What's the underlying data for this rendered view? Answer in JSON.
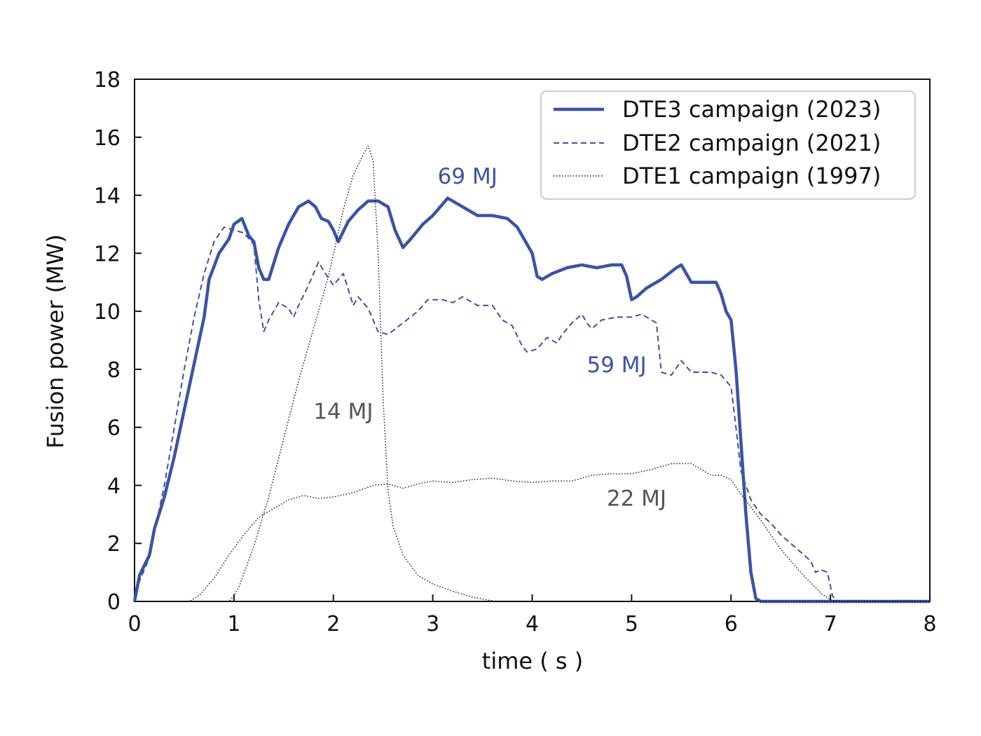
{
  "chart_data": {
    "type": "line",
    "xlabel": "time  ( s )",
    "ylabel": "Fusion power (MW)",
    "xlim": [
      0,
      8
    ],
    "ylim": [
      0,
      18
    ],
    "xticks": [
      0,
      1,
      2,
      3,
      4,
      5,
      6,
      7,
      8
    ],
    "yticks": [
      0,
      2,
      4,
      6,
      8,
      10,
      12,
      14,
      16,
      18
    ],
    "grid": false,
    "legend_position": "top-right",
    "colors": {
      "blue": "#3c53a4",
      "black": "#111111",
      "annotation_gray": "#555555"
    },
    "series": [
      {
        "name": "DTE3 campaign (2023)",
        "style": "solid",
        "color": "#3c53a4",
        "points": [
          [
            0,
            0
          ],
          [
            0.05,
            0.9
          ],
          [
            0.15,
            1.6
          ],
          [
            0.2,
            2.5
          ],
          [
            0.3,
            3.6
          ],
          [
            0.4,
            5
          ],
          [
            0.5,
            6.6
          ],
          [
            0.6,
            8.2
          ],
          [
            0.7,
            9.8
          ],
          [
            0.75,
            11.1
          ],
          [
            0.85,
            12
          ],
          [
            0.95,
            12.5
          ],
          [
            1.0,
            13
          ],
          [
            1.08,
            13.2
          ],
          [
            1.15,
            12.6
          ],
          [
            1.2,
            12.4
          ],
          [
            1.25,
            11.5
          ],
          [
            1.3,
            11.1
          ],
          [
            1.35,
            11.1
          ],
          [
            1.45,
            12.2
          ],
          [
            1.55,
            13.0
          ],
          [
            1.65,
            13.6
          ],
          [
            1.75,
            13.8
          ],
          [
            1.82,
            13.6
          ],
          [
            1.88,
            13.2
          ],
          [
            1.95,
            13.1
          ],
          [
            2.0,
            12.8
          ],
          [
            2.05,
            12.4
          ],
          [
            2.15,
            13.1
          ],
          [
            2.25,
            13.5
          ],
          [
            2.35,
            13.8
          ],
          [
            2.45,
            13.8
          ],
          [
            2.55,
            13.6
          ],
          [
            2.62,
            12.8
          ],
          [
            2.7,
            12.2
          ],
          [
            2.78,
            12.5
          ],
          [
            2.9,
            13.0
          ],
          [
            3.0,
            13.3
          ],
          [
            3.1,
            13.7
          ],
          [
            3.15,
            13.9
          ],
          [
            3.3,
            13.6
          ],
          [
            3.45,
            13.3
          ],
          [
            3.6,
            13.3
          ],
          [
            3.75,
            13.2
          ],
          [
            3.85,
            12.9
          ],
          [
            3.95,
            12.3
          ],
          [
            4.0,
            12.0
          ],
          [
            4.05,
            11.2
          ],
          [
            4.1,
            11.1
          ],
          [
            4.2,
            11.3
          ],
          [
            4.35,
            11.5
          ],
          [
            4.5,
            11.6
          ],
          [
            4.65,
            11.5
          ],
          [
            4.8,
            11.6
          ],
          [
            4.9,
            11.6
          ],
          [
            4.95,
            11.2
          ],
          [
            5.0,
            10.4
          ],
          [
            5.05,
            10.5
          ],
          [
            5.15,
            10.8
          ],
          [
            5.3,
            11.1
          ],
          [
            5.45,
            11.5
          ],
          [
            5.5,
            11.6
          ],
          [
            5.55,
            11.3
          ],
          [
            5.6,
            11.0
          ],
          [
            5.7,
            11.0
          ],
          [
            5.85,
            11.0
          ],
          [
            5.9,
            10.6
          ],
          [
            5.95,
            10.0
          ],
          [
            6.0,
            9.7
          ],
          [
            6.05,
            8.0
          ],
          [
            6.1,
            5.5
          ],
          [
            6.15,
            3.0
          ],
          [
            6.2,
            1.0
          ],
          [
            6.25,
            0.1
          ],
          [
            6.3,
            0
          ],
          [
            8.0,
            0
          ]
        ]
      },
      {
        "name": "DTE2 campaign (2021)",
        "style": "dashed",
        "color": "#3c53a4",
        "points": [
          [
            0,
            0
          ],
          [
            0.05,
            0.7
          ],
          [
            0.15,
            1.5
          ],
          [
            0.2,
            2.4
          ],
          [
            0.3,
            4.0
          ],
          [
            0.4,
            6.0
          ],
          [
            0.5,
            8.0
          ],
          [
            0.6,
            9.8
          ],
          [
            0.7,
            11.3
          ],
          [
            0.8,
            12.4
          ],
          [
            0.9,
            12.9
          ],
          [
            1.0,
            12.8
          ],
          [
            1.1,
            12.7
          ],
          [
            1.2,
            12.3
          ],
          [
            1.25,
            10.4
          ],
          [
            1.3,
            9.3
          ],
          [
            1.35,
            9.7
          ],
          [
            1.45,
            10.3
          ],
          [
            1.55,
            10.1
          ],
          [
            1.6,
            9.8
          ],
          [
            1.65,
            10.2
          ],
          [
            1.75,
            10.9
          ],
          [
            1.85,
            11.7
          ],
          [
            1.92,
            11.3
          ],
          [
            2.0,
            10.9
          ],
          [
            2.1,
            11.3
          ],
          [
            2.2,
            10.2
          ],
          [
            2.25,
            10.5
          ],
          [
            2.35,
            10.1
          ],
          [
            2.45,
            9.3
          ],
          [
            2.55,
            9.2
          ],
          [
            2.7,
            9.6
          ],
          [
            2.85,
            10.0
          ],
          [
            2.95,
            10.4
          ],
          [
            3.1,
            10.4
          ],
          [
            3.2,
            10.3
          ],
          [
            3.3,
            10.5
          ],
          [
            3.45,
            10.2
          ],
          [
            3.6,
            10.2
          ],
          [
            3.7,
            9.7
          ],
          [
            3.8,
            9.5
          ],
          [
            3.9,
            8.8
          ],
          [
            3.95,
            8.6
          ],
          [
            4.05,
            8.7
          ],
          [
            4.15,
            9.1
          ],
          [
            4.25,
            8.9
          ],
          [
            4.3,
            9.2
          ],
          [
            4.4,
            9.6
          ],
          [
            4.5,
            9.9
          ],
          [
            4.55,
            9.6
          ],
          [
            4.6,
            9.4
          ],
          [
            4.7,
            9.7
          ],
          [
            4.85,
            9.8
          ],
          [
            5.0,
            9.8
          ],
          [
            5.1,
            9.9
          ],
          [
            5.2,
            9.7
          ],
          [
            5.25,
            9.6
          ],
          [
            5.3,
            7.9
          ],
          [
            5.4,
            7.8
          ],
          [
            5.5,
            8.3
          ],
          [
            5.6,
            7.9
          ],
          [
            5.7,
            7.9
          ],
          [
            5.8,
            7.9
          ],
          [
            5.9,
            7.8
          ],
          [
            6.0,
            7.4
          ],
          [
            6.05,
            6.0
          ],
          [
            6.1,
            4.5
          ],
          [
            6.2,
            3.5
          ],
          [
            6.3,
            3.0
          ],
          [
            6.4,
            2.7
          ],
          [
            6.5,
            2.3
          ],
          [
            6.6,
            2.0
          ],
          [
            6.7,
            1.7
          ],
          [
            6.8,
            1.4
          ],
          [
            6.85,
            1.0
          ],
          [
            6.9,
            1.1
          ],
          [
            6.97,
            1.0
          ],
          [
            7.02,
            0.2
          ],
          [
            7.05,
            0.05
          ],
          [
            7.1,
            0
          ],
          [
            8.0,
            0
          ]
        ]
      },
      {
        "name": "DTE1 campaign (1997)",
        "style": "dotted",
        "color": "#111111",
        "points": [
          [
            0,
            0
          ],
          [
            0.95,
            0
          ],
          [
            1.0,
            0.2
          ],
          [
            1.05,
            0.5
          ],
          [
            1.2,
            1.9
          ],
          [
            1.35,
            3.6
          ],
          [
            1.5,
            5.6
          ],
          [
            1.65,
            7.6
          ],
          [
            1.8,
            9.4
          ],
          [
            1.95,
            11.2
          ],
          [
            2.1,
            13.5
          ],
          [
            2.2,
            14.7
          ],
          [
            2.3,
            15.4
          ],
          [
            2.35,
            15.7
          ],
          [
            2.4,
            15.2
          ],
          [
            2.45,
            12.0
          ],
          [
            2.5,
            7.0
          ],
          [
            2.55,
            3.8
          ],
          [
            2.6,
            2.6
          ],
          [
            2.7,
            1.6
          ],
          [
            2.85,
            0.9
          ],
          [
            3.0,
            0.6
          ],
          [
            3.2,
            0.35
          ],
          [
            3.4,
            0.15
          ],
          [
            3.6,
            0.02
          ],
          [
            3.65,
            0
          ],
          [
            8.0,
            0
          ]
        ]
      },
      {
        "name": "",
        "style": "dotted",
        "color": "#111111",
        "points": [
          [
            0,
            0
          ],
          [
            0.55,
            0
          ],
          [
            0.65,
            0.2
          ],
          [
            0.8,
            0.8
          ],
          [
            0.95,
            1.6
          ],
          [
            1.1,
            2.3
          ],
          [
            1.25,
            2.9
          ],
          [
            1.4,
            3.2
          ],
          [
            1.55,
            3.5
          ],
          [
            1.7,
            3.65
          ],
          [
            1.85,
            3.55
          ],
          [
            2.0,
            3.6
          ],
          [
            2.2,
            3.75
          ],
          [
            2.4,
            4.0
          ],
          [
            2.55,
            4.05
          ],
          [
            2.7,
            3.9
          ],
          [
            2.85,
            4.05
          ],
          [
            3.0,
            4.15
          ],
          [
            3.2,
            4.1
          ],
          [
            3.4,
            4.2
          ],
          [
            3.6,
            4.25
          ],
          [
            3.8,
            4.15
          ],
          [
            4.0,
            4.1
          ],
          [
            4.2,
            4.15
          ],
          [
            4.4,
            4.15
          ],
          [
            4.6,
            4.35
          ],
          [
            4.8,
            4.4
          ],
          [
            5.0,
            4.4
          ],
          [
            5.2,
            4.55
          ],
          [
            5.4,
            4.75
          ],
          [
            5.6,
            4.75
          ],
          [
            5.7,
            4.55
          ],
          [
            5.8,
            4.35
          ],
          [
            5.9,
            4.35
          ],
          [
            6.0,
            4.2
          ],
          [
            6.1,
            3.7
          ],
          [
            6.3,
            2.8
          ],
          [
            6.5,
            1.8
          ],
          [
            6.7,
            1.0
          ],
          [
            6.9,
            0.3
          ],
          [
            7.0,
            0.05
          ],
          [
            7.1,
            0
          ],
          [
            8.0,
            0
          ]
        ]
      }
    ],
    "annotations": [
      {
        "text": "69 MJ",
        "x": 3.35,
        "y": 14.4,
        "color": "#3c53a4"
      },
      {
        "text": "59 MJ",
        "x": 4.85,
        "y": 7.9,
        "color": "#3c53a4"
      },
      {
        "text": "14 MJ",
        "x": 2.1,
        "y": 6.3,
        "color": "#555555"
      },
      {
        "text": "22 MJ",
        "x": 5.05,
        "y": 3.3,
        "color": "#555555"
      }
    ]
  }
}
